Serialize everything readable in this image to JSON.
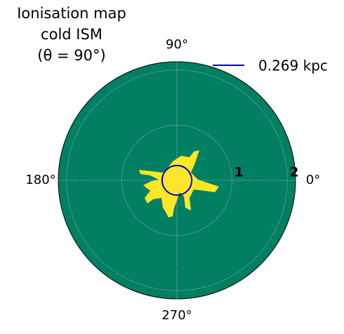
{
  "chart_data": {
    "type": "polar",
    "title": [
      "Ionisation map",
      "cold ISM",
      "(θ = 90°)"
    ],
    "background_color": "#007f62",
    "rlim": [
      0,
      2.15
    ],
    "rticks": [
      1,
      2
    ],
    "angle_ticks": [
      {
        "value": 0,
        "label": "0°"
      },
      {
        "value": 90,
        "label": "90°"
      },
      {
        "value": 180,
        "label": "180°"
      },
      {
        "value": 270,
        "label": "270°"
      }
    ],
    "grid": true,
    "legend": "upper right",
    "series": [
      {
        "name": "0.269 kpc",
        "color": "#0000cc",
        "values": [
          0.269
        ]
      }
    ]
  }
}
